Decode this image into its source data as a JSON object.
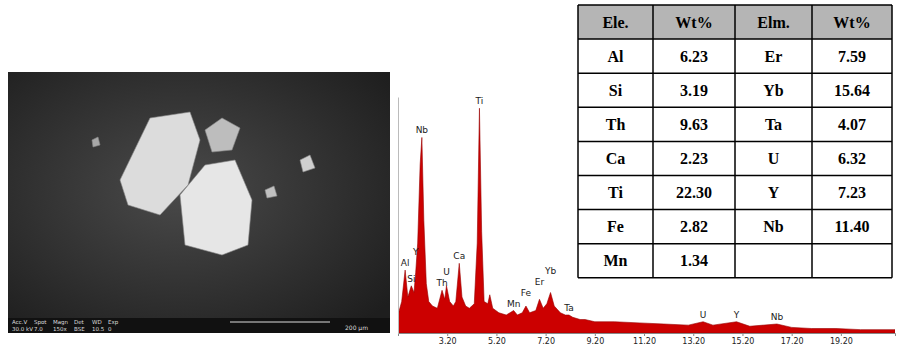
{
  "chart_data": {
    "type": "area",
    "color": "#cc0000",
    "x": [
      1.2,
      1.35,
      1.49,
      1.6,
      1.74,
      1.85,
      1.92,
      2.0,
      2.1,
      2.17,
      2.25,
      2.35,
      2.45,
      2.6,
      2.8,
      2.99,
      3.1,
      3.17,
      3.3,
      3.45,
      3.55,
      3.69,
      3.8,
      3.95,
      4.1,
      4.3,
      4.42,
      4.51,
      4.6,
      4.7,
      4.85,
      4.93,
      5.05,
      5.3,
      5.6,
      5.9,
      6.05,
      6.25,
      6.4,
      6.55,
      6.8,
      6.95,
      7.1,
      7.25,
      7.4,
      7.55,
      7.8,
      8.0,
      8.15,
      8.3,
      8.6,
      8.8,
      9.2,
      10,
      11,
      12,
      13,
      13.6,
      14,
      14.96,
      15.5,
      16.6,
      17.2,
      18,
      19,
      20,
      21.4
    ],
    "values": [
      8,
      14,
      28,
      16,
      21,
      18,
      27,
      40,
      75,
      87,
      50,
      22,
      14,
      12,
      11,
      19,
      15,
      21,
      14,
      12,
      14,
      31,
      16,
      12,
      11,
      13,
      40,
      100,
      45,
      14,
      13,
      17,
      11,
      9,
      8,
      10,
      8,
      9,
      12,
      9,
      10,
      15,
      11,
      13,
      18,
      12,
      9,
      8,
      8,
      7,
      6,
      6,
      5,
      5,
      4.5,
      4,
      3.5,
      5,
      3.5,
      5,
      3,
      4,
      2.5,
      2,
      2,
      1.5,
      1.5
    ],
    "xlim": [
      1.2,
      21.4
    ],
    "ylim": [
      0,
      105
    ],
    "xticks": [
      {
        "value": 3.2,
        "label": "3.20"
      },
      {
        "value": 5.2,
        "label": "5.20"
      },
      {
        "value": 7.2,
        "label": "7.20"
      },
      {
        "value": 9.2,
        "label": "9.20"
      },
      {
        "value": 11.2,
        "label": "11.20"
      },
      {
        "value": 13.2,
        "label": "13.20"
      },
      {
        "value": 15.2,
        "label": "15.20"
      },
      {
        "value": 17.2,
        "label": "17.20"
      },
      {
        "value": 19.2,
        "label": "19.20"
      }
    ],
    "yticks": [],
    "tick_labels": "x",
    "peak_labels": [
      {
        "label": "Al",
        "x": 1.49
      },
      {
        "label": "Si",
        "x": 1.74
      },
      {
        "label": "Y",
        "x": 1.92
      },
      {
        "label": "Nb",
        "x": 2.17
      },
      {
        "label": "Th",
        "x": 2.99
      },
      {
        "label": "U",
        "x": 3.17
      },
      {
        "label": "Ca",
        "x": 3.69
      },
      {
        "label": "Ti",
        "x": 4.51
      },
      {
        "label": "Mn",
        "x": 5.9
      },
      {
        "label": "Fe",
        "x": 6.4
      },
      {
        "label": "Er",
        "x": 6.95
      },
      {
        "label": "Yb",
        "x": 7.4
      },
      {
        "label": "Ta",
        "x": 8.15
      },
      {
        "label": "U",
        "x": 13.6
      },
      {
        "label": "Y",
        "x": 14.96
      },
      {
        "label": "Nb",
        "x": 16.6
      }
    ]
  },
  "table": {
    "header": [
      "Ele.",
      "Wt%",
      "Elm.",
      "Wt%"
    ],
    "rows": [
      [
        "Al",
        "6.23",
        "Er",
        "7.59"
      ],
      [
        "Si",
        "3.19",
        "Yb",
        "15.64"
      ],
      [
        "Th",
        "9.63",
        "Ta",
        "4.07"
      ],
      [
        "Ca",
        "2.23",
        "U",
        "6.32"
      ],
      [
        "Ti",
        "22.30",
        "Y",
        "7.23"
      ],
      [
        "Fe",
        "2.82",
        "Nb",
        "11.40"
      ],
      [
        "Mn",
        "1.34"
      ]
    ]
  },
  "micrograph": {
    "info_labels": [
      "Acc.V",
      "Spot",
      "Magn",
      "Det",
      "WD",
      "Exp"
    ],
    "info_values": [
      "30.0 kV",
      "7.0",
      "150x",
      "BSE",
      "10.5",
      "0"
    ],
    "scale_bar": "200 µm"
  }
}
